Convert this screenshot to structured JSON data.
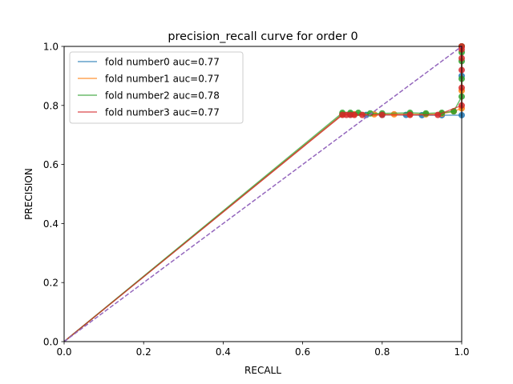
{
  "chart_data": {
    "type": "line",
    "title": "precision_recall curve for order 0",
    "xlabel": "RECALL",
    "ylabel": "PRECISION",
    "xlim": [
      0.0,
      1.0
    ],
    "ylim": [
      0.0,
      1.0
    ],
    "xticks": [
      "0.0",
      "0.2",
      "0.4",
      "0.6",
      "0.8",
      "1.0"
    ],
    "yticks": [
      "0.0",
      "0.2",
      "0.4",
      "0.6",
      "0.8",
      "1.0"
    ],
    "grid": false,
    "legend_position": "top-left",
    "series": [
      {
        "name": "fold number0 auc=0.77",
        "color": "#1f77b4",
        "x": [
          0.0,
          0.7,
          0.72,
          0.76,
          0.8,
          0.86,
          0.9,
          0.95,
          1.0,
          1.0,
          1.0
        ],
        "y": [
          0.0,
          0.77,
          0.77,
          0.768,
          0.768,
          0.768,
          0.767,
          0.767,
          0.767,
          0.9,
          1.0
        ]
      },
      {
        "name": "fold number1 auc=0.77",
        "color": "#ff7f0e",
        "x": [
          0.0,
          0.7,
          0.73,
          0.78,
          0.83,
          0.87,
          0.91,
          0.95,
          0.98,
          1.0,
          1.0,
          1.0
        ],
        "y": [
          0.0,
          0.77,
          0.77,
          0.77,
          0.77,
          0.77,
          0.77,
          0.772,
          0.78,
          0.79,
          0.85,
          1.0
        ]
      },
      {
        "name": "fold number2 auc=0.78",
        "color": "#2ca02c",
        "x": [
          0.0,
          0.7,
          0.72,
          0.74,
          0.77,
          0.8,
          0.87,
          0.91,
          0.95,
          0.98,
          1.0,
          1.0,
          1.0,
          1.0,
          1.0
        ],
        "y": [
          0.0,
          0.775,
          0.775,
          0.775,
          0.773,
          0.773,
          0.775,
          0.773,
          0.775,
          0.78,
          0.83,
          0.89,
          0.95,
          0.98,
          1.0
        ]
      },
      {
        "name": "fold number3 auc=0.77",
        "color": "#d62728",
        "x": [
          0.0,
          0.7,
          0.71,
          0.72,
          0.73,
          0.75,
          0.8,
          0.87,
          0.94,
          1.0,
          1.0,
          1.0,
          1.0,
          1.0,
          1.0
        ],
        "y": [
          0.0,
          0.768,
          0.768,
          0.768,
          0.768,
          0.768,
          0.768,
          0.768,
          0.768,
          0.8,
          0.86,
          0.92,
          0.96,
          0.99,
          1.0
        ]
      },
      {
        "name": "",
        "color": "#9467bd",
        "dashed": true,
        "x": [
          0.0,
          1.0
        ],
        "y": [
          0.0,
          1.0
        ]
      }
    ]
  }
}
